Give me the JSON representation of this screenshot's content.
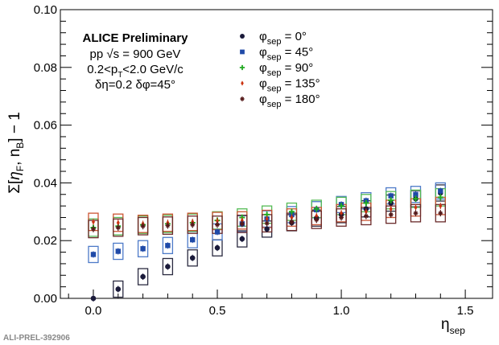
{
  "chart_data": {
    "type": "scatter",
    "xlabel": "η",
    "xlabel_sub": "sep",
    "ylabel": "Σ[η_F, n_B] − 1",
    "ylabel_parts": {
      "pre": "Σ[",
      "eta": "η",
      "f": "F",
      "mid": ", n",
      "b": "B",
      "post": "] − 1"
    },
    "xlim": [
      -0.133,
      1.61
    ],
    "ylim": [
      0,
      0.1
    ],
    "x_ticks": [
      "0.0",
      "0.5",
      "1.0",
      "1.5"
    ],
    "x_tick_values": [
      0,
      0.5,
      1.0,
      1.5
    ],
    "y_ticks": [
      "0.00",
      "0.02",
      "0.04",
      "0.06",
      "0.08",
      "0.10"
    ],
    "y_tick_values": [
      0,
      0.02,
      0.04,
      0.06,
      0.08,
      0.1
    ],
    "grid": false,
    "legend_position": "top-center",
    "annotations": {
      "title": "ALICE Preliminary",
      "line1": "pp √s = 900 GeV",
      "line2_pre": "0.2<p",
      "line2_sub": "T",
      "line2_post": "<2.0 GeV/c",
      "line3": "δη=0.2 δφ=45°"
    },
    "watermark": "ALI-PREL-392906",
    "x": [
      0.0,
      0.1,
      0.2,
      0.3,
      0.4,
      0.5,
      0.6,
      0.7,
      0.8,
      0.9,
      1.0,
      1.1,
      1.2,
      1.3,
      1.4
    ],
    "series": [
      {
        "name": "φsep = 0°",
        "sym": "φ",
        "sub": "sep",
        "label": " = 0°",
        "marker": "circle",
        "color": "#1a1a3a",
        "box": "#2a2a40",
        "values": [
          0.0,
          0.0032,
          0.0075,
          0.011,
          0.014,
          0.0175,
          0.0206,
          0.024,
          0.0262,
          0.0278,
          0.029,
          0.031,
          0.033,
          0.0345,
          0.0365
        ],
        "sys": 0.0028
      },
      {
        "name": "φsep = 45°",
        "sym": "φ",
        "sub": "sep",
        "label": " = 45°",
        "marker": "square",
        "color": "#1f4aa8",
        "box": "#4d7ac8",
        "values": [
          0.0152,
          0.0163,
          0.0172,
          0.0183,
          0.0203,
          0.023,
          0.0258,
          0.0275,
          0.029,
          0.0307,
          0.0325,
          0.0338,
          0.0355,
          0.036,
          0.0372
        ],
        "sys": 0.0028
      },
      {
        "name": "φsep = 90°",
        "sym": "φ",
        "sub": "sep",
        "label": " = 90°",
        "marker": "cross",
        "color": "#22aa22",
        "box": "#55bb55",
        "values": [
          0.0245,
          0.025,
          0.0255,
          0.0258,
          0.0262,
          0.027,
          0.028,
          0.029,
          0.03,
          0.031,
          0.032,
          0.033,
          0.034,
          0.0345,
          0.035
        ],
        "sys": 0.003
      },
      {
        "name": "φsep = 135°",
        "sym": "φ",
        "sub": "sep",
        "label": " = 135°",
        "marker": "diamond",
        "color": "#cc3311",
        "box": "#cc5533",
        "values": [
          0.0265,
          0.0262,
          0.0258,
          0.0262,
          0.0265,
          0.0268,
          0.027,
          0.0275,
          0.028,
          0.0285,
          0.0295,
          0.03,
          0.031,
          0.0315,
          0.032
        ],
        "sys": 0.003
      },
      {
        "name": "φsep = 180°",
        "sym": "φ",
        "sub": "sep",
        "label": " = 180°",
        "marker": "star",
        "color": "#551a1a",
        "box": "#6a2a2a",
        "values": [
          0.024,
          0.0245,
          0.025,
          0.0252,
          0.0255,
          0.0255,
          0.0258,
          0.026,
          0.0265,
          0.0272,
          0.028,
          0.0285,
          0.029,
          0.0295,
          0.0295
        ],
        "sys": 0.003
      }
    ]
  }
}
